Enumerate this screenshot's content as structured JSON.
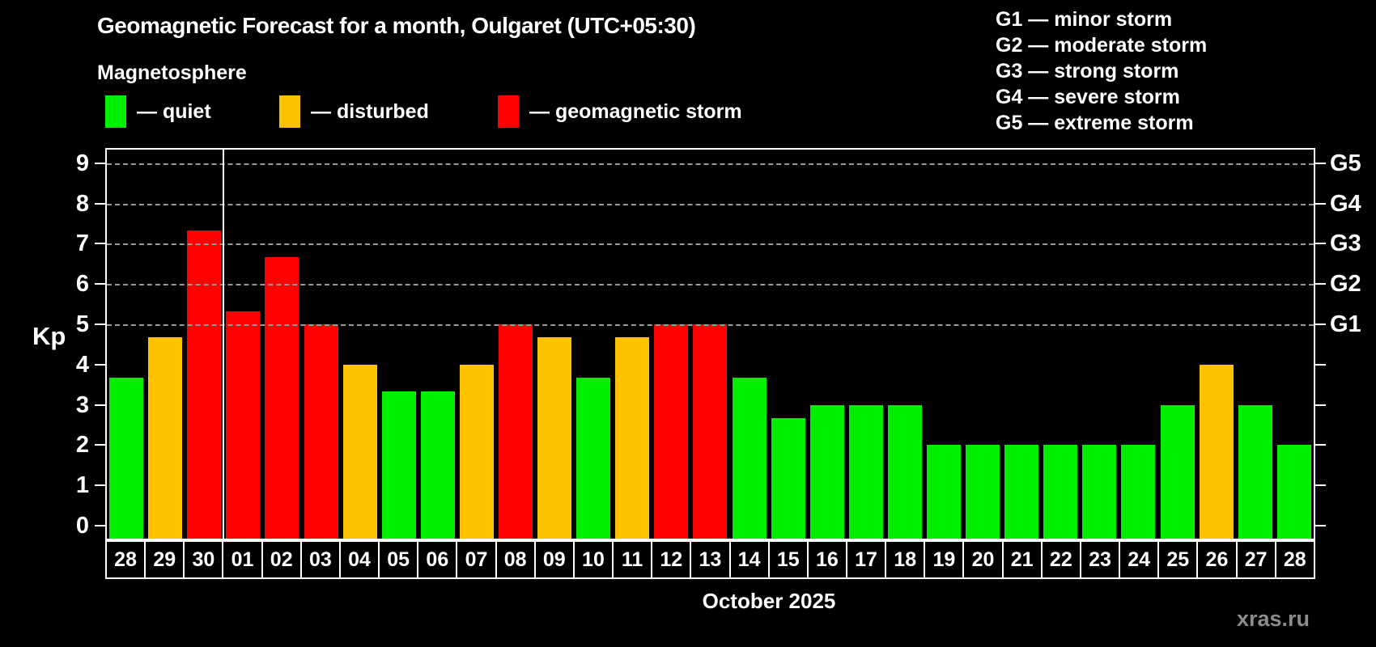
{
  "title": "Geomagnetic Forecast for a month, Oulgaret (UTC+05:30)",
  "subtitle": "Magnetosphere",
  "legend": {
    "items": [
      {
        "status": "quiet",
        "label": "— quiet",
        "color": "#00ee00"
      },
      {
        "status": "disturbed",
        "label": "— disturbed",
        "color": "#ffc200"
      },
      {
        "status": "storm",
        "label": "— geomagnetic storm",
        "color": "#ff0000"
      }
    ]
  },
  "g_legend": [
    "G1 — minor storm",
    "G2 — moderate storm",
    "G3 — strong storm",
    "G4 — severe storm",
    "G5 — extreme storm"
  ],
  "axis": {
    "kp_label": "Kp",
    "y_ticks": [
      0,
      1,
      2,
      3,
      4,
      5,
      6,
      7,
      8,
      9
    ],
    "right_axis_labels": {
      "5": "G1",
      "6": "G2",
      "7": "G3",
      "8": "G4",
      "9": "G5"
    }
  },
  "x_axis": {
    "month_label": "October 2025"
  },
  "watermark": "xras.ru",
  "chart_data": {
    "type": "bar",
    "title": "Geomagnetic Forecast for a month, Oulgaret (UTC+05:30)",
    "ylabel": "Kp",
    "xlabel": "October 2025",
    "ylim": [
      -0.4,
      9.4
    ],
    "grid": "dashed horizontal at Kp 5-9 (G1-G5)",
    "y_gridlines": [
      5,
      6,
      7,
      8,
      9
    ],
    "legend_position": "top-left",
    "categories": [
      "28",
      "29",
      "30",
      "01",
      "02",
      "03",
      "04",
      "05",
      "06",
      "07",
      "08",
      "09",
      "10",
      "11",
      "12",
      "13",
      "14",
      "15",
      "16",
      "17",
      "18",
      "19",
      "20",
      "21",
      "22",
      "23",
      "24",
      "25",
      "26",
      "27",
      "28"
    ],
    "values": [
      3.67,
      4.67,
      7.33,
      5.33,
      6.67,
      5.0,
      4.0,
      3.33,
      3.33,
      4.0,
      5.0,
      4.67,
      3.67,
      4.67,
      5.0,
      5.0,
      3.67,
      2.67,
      3.0,
      3.0,
      3.0,
      2.0,
      2.0,
      2.0,
      2.0,
      2.0,
      2.0,
      3.0,
      4.0,
      3.0,
      2.0
    ],
    "statuses": [
      "quiet",
      "disturbed",
      "storm",
      "storm",
      "storm",
      "storm",
      "disturbed",
      "quiet",
      "quiet",
      "disturbed",
      "storm",
      "disturbed",
      "quiet",
      "disturbed",
      "storm",
      "storm",
      "quiet",
      "quiet",
      "quiet",
      "quiet",
      "quiet",
      "quiet",
      "quiet",
      "quiet",
      "quiet",
      "quiet",
      "quiet",
      "quiet",
      "disturbed",
      "quiet",
      "quiet"
    ],
    "month_boundary_after_index": 2
  }
}
